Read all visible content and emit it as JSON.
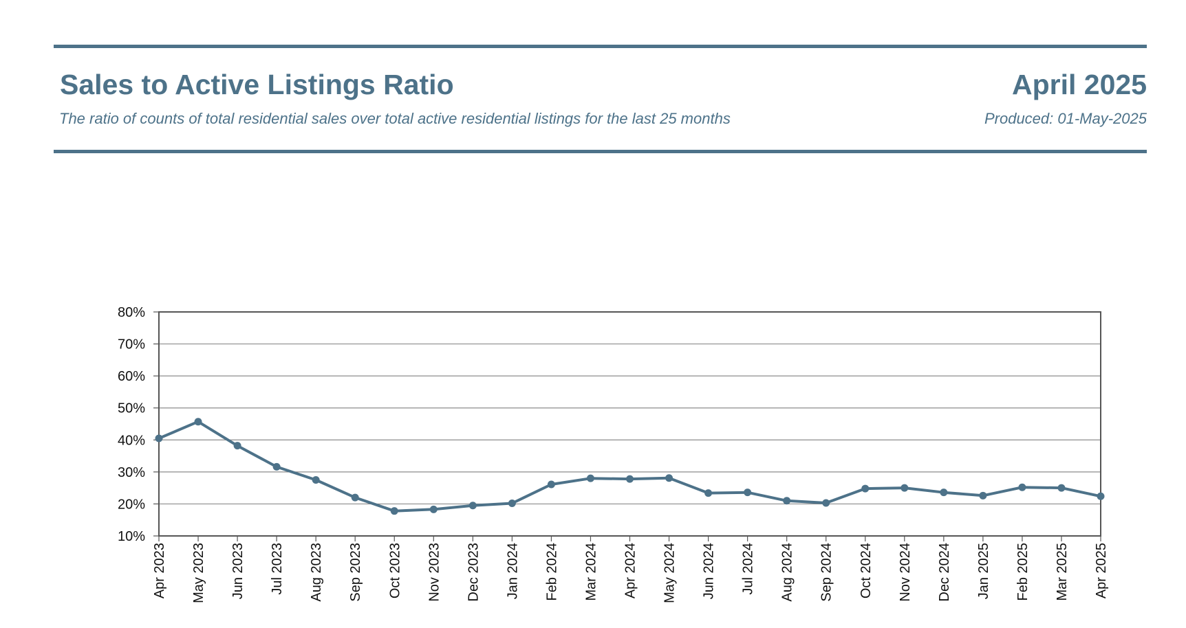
{
  "header": {
    "title": "Sales to Active Listings Ratio",
    "subtitle": "The ratio of counts of total residential sales over total active residential listings for the last 25 months",
    "period": "April 2025",
    "produced": "Produced: 01-May-2025"
  },
  "colors": {
    "accent": "#4d7289",
    "line": "#4d7289",
    "grid": "#8c8c8c",
    "axis": "#555555"
  },
  "chart_data": {
    "type": "line",
    "title": "",
    "xlabel": "",
    "ylabel": "",
    "ylim": [
      0.1,
      0.8
    ],
    "y_ticks": [
      0.1,
      0.2,
      0.3,
      0.4,
      0.5,
      0.6,
      0.7,
      0.8
    ],
    "y_tick_labels": [
      "10%",
      "20%",
      "30%",
      "40%",
      "50%",
      "60%",
      "70%",
      "80%"
    ],
    "grid": true,
    "categories": [
      "Apr 2023",
      "May 2023",
      "Jun 2023",
      "Jul 2023",
      "Aug 2023",
      "Sep 2023",
      "Oct 2023",
      "Nov 2023",
      "Dec 2023",
      "Jan 2024",
      "Feb 2024",
      "Mar 2024",
      "Apr 2024",
      "May 2024",
      "Jun 2024",
      "Jul 2024",
      "Aug 2024",
      "Sep 2024",
      "Oct 2024",
      "Nov 2024",
      "Dec 2024",
      "Jan 2025",
      "Feb 2025",
      "Mar 2025",
      "Apr 2025"
    ],
    "series": [
      {
        "values": [
          0.405,
          0.457,
          0.382,
          0.316,
          0.275,
          0.22,
          0.178,
          0.183,
          0.195,
          0.202,
          0.261,
          0.28,
          0.278,
          0.281,
          0.234,
          0.236,
          0.21,
          0.203,
          0.248,
          0.25,
          0.236,
          0.226,
          0.252,
          0.25,
          0.224
        ]
      }
    ]
  }
}
